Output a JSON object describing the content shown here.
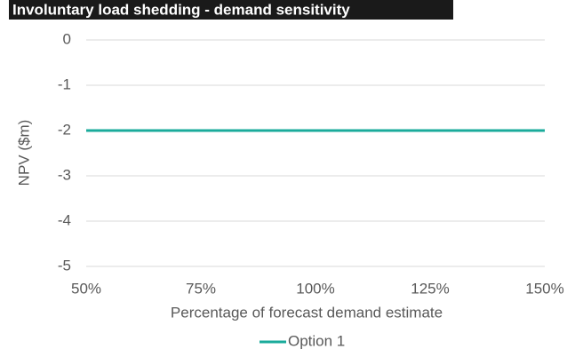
{
  "chart_data": {
    "type": "line",
    "title": "Involuntary load shedding - demand sensitivity",
    "x_label": "Percentage of forecast demand estimate",
    "y_label": "NPV ($m)",
    "x": [
      50,
      75,
      100,
      125,
      150
    ],
    "series": [
      {
        "name": "Option 1",
        "color": "#1aab9b",
        "values": [
          -2,
          -2,
          -2,
          -2,
          -2
        ]
      }
    ],
    "xlim": [
      50,
      150
    ],
    "xticks": [
      {
        "value": 50,
        "label": "50%"
      },
      {
        "value": 75,
        "label": "75%"
      },
      {
        "value": 100,
        "label": "100%"
      },
      {
        "value": 125,
        "label": "125%"
      },
      {
        "value": 150,
        "label": "150%"
      }
    ],
    "ylim": [
      -5,
      0
    ],
    "yticks": [
      0,
      -1,
      -2,
      -3,
      -4,
      -5
    ],
    "grid": true,
    "legend": "bottom"
  }
}
